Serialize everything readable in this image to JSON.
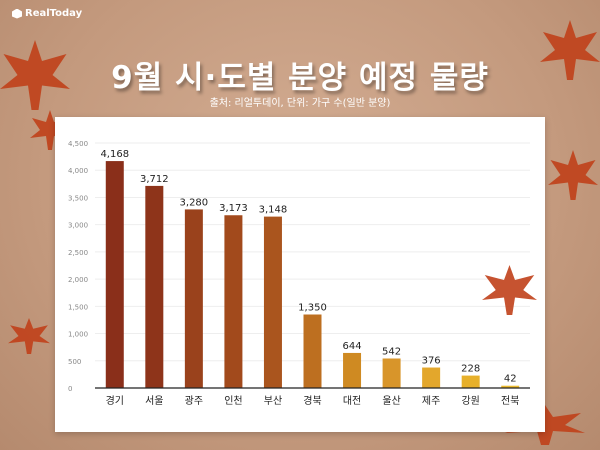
{
  "logo": {
    "text": "RealToday"
  },
  "header": {
    "title": "9월 시·도별 분양 예정 물량",
    "subtitle": "출처: 리얼투데이, 단위: 가구 수(일반 분양)"
  },
  "chart_data": {
    "type": "bar",
    "title": "9월 시·도별 분양 예정 물량",
    "categories": [
      "경기",
      "서울",
      "광주",
      "인천",
      "부산",
      "경북",
      "대전",
      "울산",
      "제주",
      "강원",
      "전북"
    ],
    "values": [
      4168,
      3712,
      3280,
      3173,
      3148,
      1350,
      644,
      542,
      376,
      228,
      42
    ],
    "data_labels": [
      "4,168",
      "3,712",
      "3,280",
      "3,173",
      "3,148",
      "1,350",
      "644",
      "542",
      "376",
      "228",
      "42"
    ],
    "yticks": [
      "0",
      "500",
      "1,000",
      "1,500",
      "2,000",
      "2,500",
      "3,000",
      "3,500",
      "4,000",
      "4,500"
    ],
    "ylim": [
      0,
      4500
    ],
    "grid": true,
    "colors": [
      "#8a2f1a",
      "#8e341a",
      "#9a421c",
      "#a24a1c",
      "#aa551e",
      "#bd6f20",
      "#cf8a22",
      "#d8952a",
      "#e3a72c",
      "#e7b02a",
      "#ecbb2e"
    ]
  }
}
